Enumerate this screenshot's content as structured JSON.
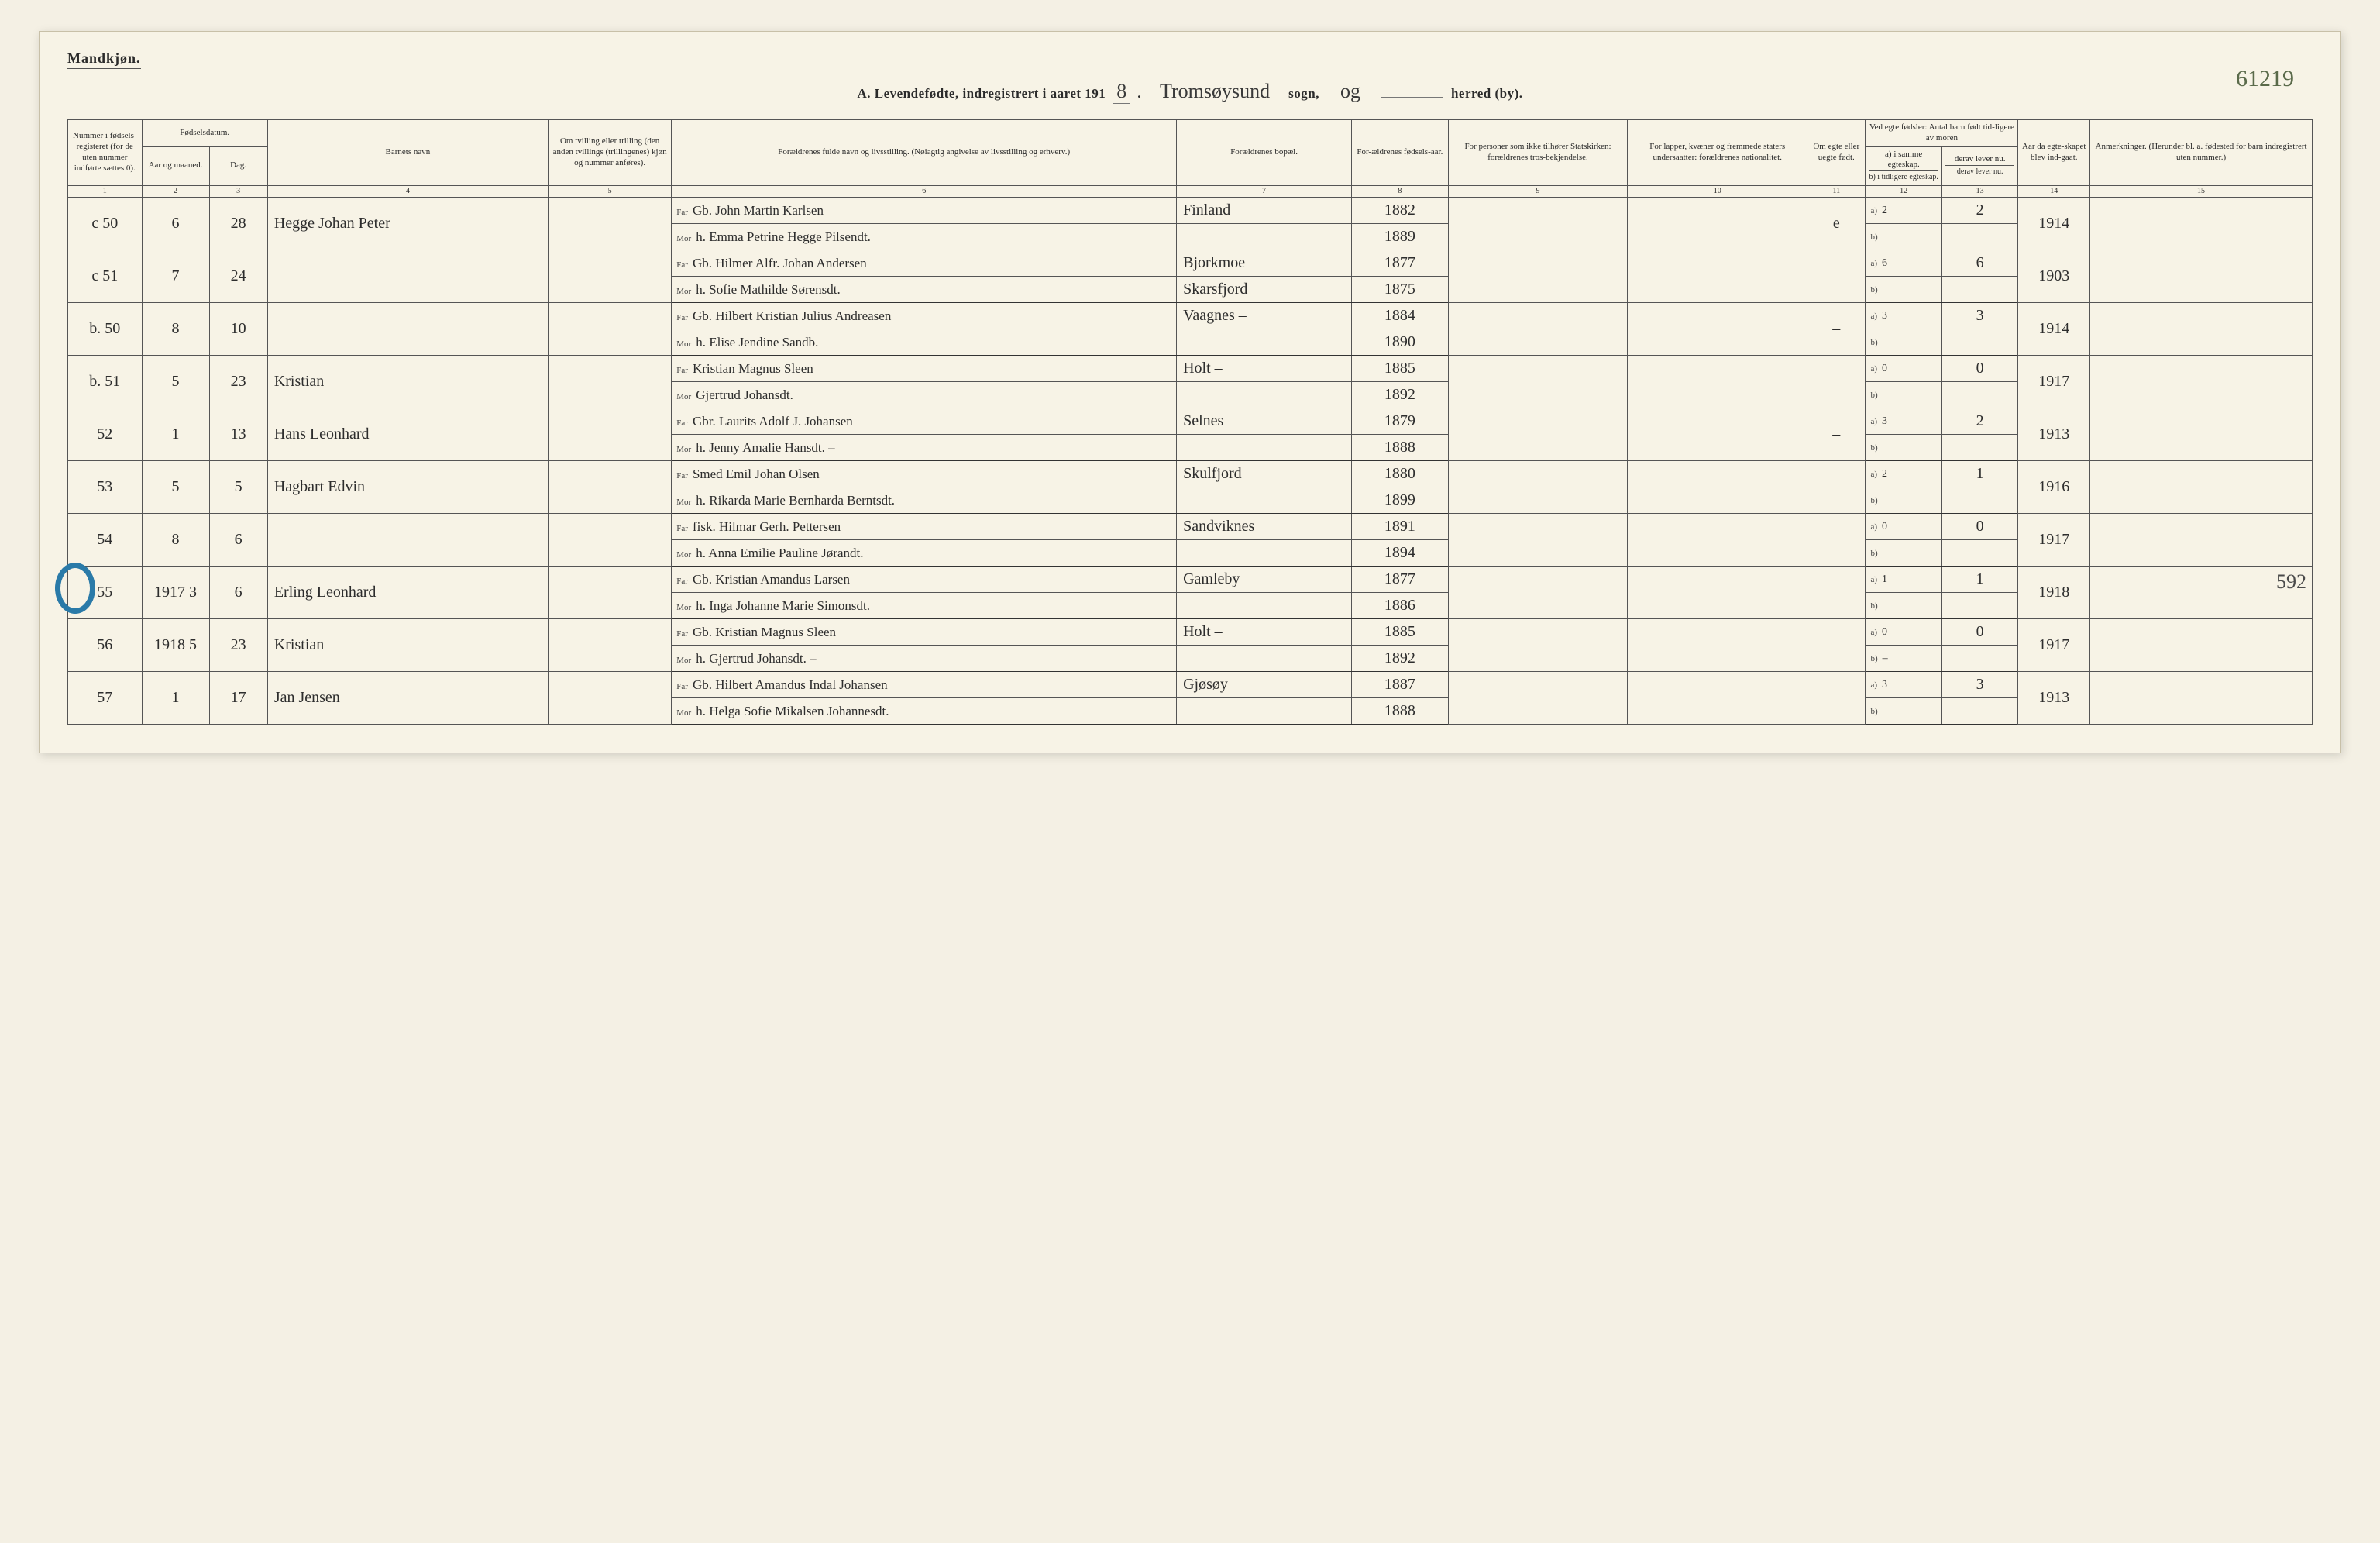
{
  "header": {
    "gender_label": "Mandkjøn.",
    "title_prefix": "A. Levendefødte, indregistrert i aaret 191",
    "year_suffix": "8",
    "sogn_hand": "Tromsøysund",
    "sogn_label": "sogn,",
    "mid_hand": "og",
    "herred_label": "herred (by).",
    "corner_number": "61219"
  },
  "columns": {
    "c1": "Nummer i fødsels-registeret (for de uten nummer indførte sættes 0).",
    "c2_group": "Fødselsdatum.",
    "c2": "Aar og maaned.",
    "c3": "Dag.",
    "c4": "Barnets navn",
    "c5": "Om tvilling eller trilling (den anden tvillings (trillingenes) kjøn og nummer anføres).",
    "c6": "Forældrenes fulde navn og livsstilling. (Nøiagtig angivelse av livsstilling og erhverv.)",
    "c7": "Forældrenes bopæl.",
    "c8": "For-ældrenes fødsels-aar.",
    "c9": "For personer som ikke tilhører Statskirken: forældrenes tros-bekjendelse.",
    "c10": "For lapper, kvæner og fremmede staters undersaatter: forældrenes nationalitet.",
    "c11": "Om egte eller uegte født.",
    "c12_group": "Ved egte fødsler: Antal barn født tid-ligere av moren",
    "c12a": "a) i samme egteskap.",
    "c12b": "b) i tidligere egteskap.",
    "c13a": "derav lever nu.",
    "c13b": "derav lever nu.",
    "c14": "Aar da egte-skapet blev ind-gaat.",
    "c15": "Anmerkninger. (Herunder bl. a. fødested for barn indregistrert uten nummer.)",
    "nums": [
      "1",
      "2",
      "3",
      "4",
      "5",
      "6",
      "7",
      "8",
      "9",
      "10",
      "11",
      "12",
      "13",
      "14",
      "15"
    ]
  },
  "rows": [
    {
      "num": "c 50",
      "mon": "6",
      "day": "28",
      "child": "Hegge Johan Peter",
      "twin": "",
      "far": "Gb. John Martin Karlsen",
      "mor": "h. Emma Petrine Hegge Pilsendt.",
      "bopael_f": "Finland",
      "bopael_m": "",
      "yr_f": "1882",
      "yr_m": "1889",
      "c9": "",
      "c10": "",
      "c11": "e",
      "a": "2",
      "b": "",
      "d": "2",
      "yr14": "1914",
      "note": ""
    },
    {
      "num": "c 51",
      "mon": "7",
      "day": "24",
      "child": "",
      "twin": "",
      "far": "Gb. Hilmer Alfr. Johan Andersen",
      "mor": "h. Sofie Mathilde Sørensdt.",
      "bopael_f": "Bjorkmoe",
      "bopael_m": "Skarsfjord",
      "yr_f": "1877",
      "yr_m": "1875",
      "c9": "",
      "c10": "",
      "c11": "–",
      "a": "6",
      "b": "",
      "d": "6",
      "yr14": "1903",
      "note": ""
    },
    {
      "num": "b. 50",
      "mon": "8",
      "day": "10",
      "child": "",
      "twin": "",
      "far": "Gb. Hilbert Kristian Julius Andreasen",
      "mor": "h. Elise Jendine Sandb.",
      "bopael_f": "Vaagnes –",
      "bopael_m": "",
      "yr_f": "1884",
      "yr_m": "1890",
      "c9": "",
      "c10": "",
      "c11": "–",
      "a": "3",
      "b": "",
      "d": "3",
      "yr14": "1914",
      "note": ""
    },
    {
      "num": "b. 51",
      "mon": "5",
      "day": "23",
      "child": "Kristian",
      "twin": "",
      "far": "Kristian Magnus Sleen",
      "mor": "Gjertrud Johansdt.",
      "bopael_f": "Holt –",
      "bopael_m": "",
      "yr_f": "1885",
      "yr_m": "1892",
      "c9": "",
      "c10": "",
      "c11": "",
      "a": "0",
      "b": "",
      "d": "0",
      "yr14": "1917",
      "note": ""
    },
    {
      "num": "52",
      "mon": "1",
      "day": "13",
      "child": "Hans Leonhard",
      "twin": "",
      "far": "Gbr. Laurits Adolf J. Johansen",
      "mor": "h. Jenny Amalie Hansdt. –",
      "bopael_f": "Selnes –",
      "bopael_m": "",
      "yr_f": "1879",
      "yr_m": "1888",
      "c9": "",
      "c10": "",
      "c11": "–",
      "a": "3",
      "b": "",
      "d": "2",
      "yr14": "1913",
      "note": ""
    },
    {
      "num": "53",
      "mon": "5",
      "day": "5",
      "child": "Hagbart Edvin",
      "twin": "",
      "far": "Smed Emil Johan Olsen",
      "mor": "h. Rikarda Marie Bernharda Berntsdt.",
      "bopael_f": "Skulfjord",
      "bopael_m": "",
      "yr_f": "1880",
      "yr_m": "1899",
      "c9": "",
      "c10": "",
      "c11": "",
      "a": "2",
      "b": "",
      "d": "1",
      "yr14": "1916",
      "note": ""
    },
    {
      "num": "54",
      "mon": "8",
      "day": "6",
      "child": "",
      "twin": "",
      "far": "fisk. Hilmar Gerh. Pettersen",
      "mor": "h. Anna Emilie Pauline Jørandt.",
      "bopael_f": "Sandviknes",
      "bopael_m": "",
      "yr_f": "1891",
      "yr_m": "1894",
      "c9": "",
      "c10": "",
      "c11": "",
      "a": "0",
      "b": "",
      "d": "0",
      "yr14": "1917",
      "note": ""
    },
    {
      "num": "55",
      "mon": "1917  3",
      "day": "6",
      "child": "Erling Leonhard",
      "twin": "",
      "far": "Gb. Kristian Amandus Larsen",
      "mor": "h. Inga Johanne Marie Simonsdt.",
      "bopael_f": "Gamleby –",
      "bopael_m": "",
      "yr_f": "1877",
      "yr_m": "1886",
      "c9": "",
      "c10": "",
      "c11": "",
      "a": "1",
      "b": "",
      "d": "1",
      "yr14": "1918",
      "note": "592",
      "circle": true
    },
    {
      "num": "56",
      "mon": "1918  5",
      "day": "23",
      "child": "Kristian",
      "twin": "",
      "far": "Gb. Kristian Magnus Sleen",
      "mor": "h. Gjertrud Johansdt. –",
      "bopael_f": "Holt –",
      "bopael_m": "",
      "yr_f": "1885",
      "yr_m": "1892",
      "c9": "",
      "c10": "",
      "c11": "",
      "a": "0",
      "b": "–",
      "d": "0",
      "yr14": "1917",
      "note": ""
    },
    {
      "num": "57",
      "mon": "1",
      "day": "17",
      "child": "Jan Jensen",
      "twin": "",
      "far": "Gb. Hilbert Amandus Indal Johansen",
      "mor": "h. Helga Sofie Mikalsen Johannesdt.",
      "bopael_f": "Gjøsøy",
      "bopael_m": "",
      "yr_f": "1887",
      "yr_m": "1888",
      "c9": "",
      "c10": "",
      "c11": "",
      "a": "3",
      "b": "",
      "d": "3",
      "yr14": "1913",
      "note": ""
    }
  ],
  "colwidths_pct": [
    3.3,
    3.0,
    2.6,
    12.5,
    5.5,
    22.5,
    7.8,
    4.3,
    8.0,
    8.0,
    2.6,
    3.4,
    3.4,
    3.2,
    9.9
  ],
  "colors": {
    "paper": "#f7f3e6",
    "ink": "#2a2a2a",
    "rule": "#555555",
    "stamp": "#2a7aa8",
    "pencil": "#5a6a4a"
  }
}
